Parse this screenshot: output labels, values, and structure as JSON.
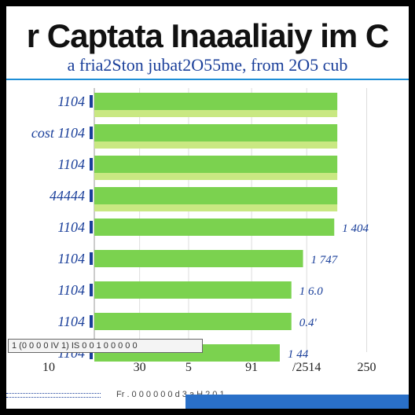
{
  "chart_data": {
    "type": "bar",
    "orientation": "horizontal",
    "title": "r Captata Inaaaliaiy im C",
    "subtitle": "a fria2Ston  jubat2O55me, from 2O5  cub",
    "categories": [
      "1104",
      "cost 1104",
      "1104",
      "44444",
      "1104",
      "1104",
      "1104",
      "1104",
      "1104"
    ],
    "series": [
      {
        "values": [
          397,
          397,
          397,
          397,
          392,
          341,
          322,
          322,
          303
        ]
      },
      {
        "values": [
          397,
          397,
          397,
          397,
          0,
          0,
          0,
          0,
          0
        ]
      }
    ],
    "value_labels": [
      "",
      "",
      "",
      "",
      "1 404",
      "1 747",
      "1 6.0",
      "0.4'",
      "1 44"
    ],
    "x_ticks": [
      {
        "value": 0,
        "label": "10"
      },
      {
        "value": 74,
        "label": "30"
      },
      {
        "value": 154,
        "label": "5"
      },
      {
        "value": 257,
        "label": "91"
      },
      {
        "value": 347,
        "label": "/2514"
      },
      {
        "value": 445,
        "label": "250"
      }
    ],
    "xlim": [
      0,
      470
    ],
    "grid": true,
    "legend": "none",
    "colors": {
      "bar": "#7bd24f",
      "bar_light": "#c9e882",
      "category_label": "#1a3f9a",
      "value_label": "#1a3f9a",
      "grid": "#dddddd"
    }
  },
  "note": "1 (0 0 0 0 IV 1) IS 0 0 1 0 0 0 0 0",
  "footer_text": "Fr  . 0 0 0 0 0 0      d 3 a H 2 0 1"
}
